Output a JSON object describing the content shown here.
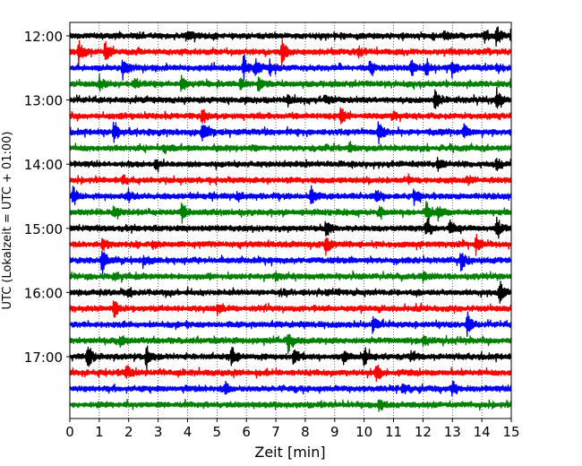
{
  "chart_data": {
    "type": "line",
    "title": "",
    "xlabel": "Zeit  [min]",
    "ylabel": "UTC (Lokalzeit = UTC + 01:00)",
    "xlim": [
      0,
      15
    ],
    "x_ticks": [
      0,
      1,
      2,
      3,
      4,
      5,
      6,
      7,
      8,
      9,
      10,
      11,
      12,
      13,
      14,
      15
    ],
    "y_tick_labels": [
      "12:00",
      "13:00",
      "14:00",
      "15:00",
      "16:00",
      "17:00"
    ],
    "vertical_grid": true,
    "trace_colors": [
      "#000000",
      "#ff0000",
      "#0000ff",
      "#008000"
    ],
    "traces": [
      {
        "start": "12:00",
        "color": "#000000",
        "events": [
          [
            4.0,
            0.4
          ],
          [
            12.7,
            0.4
          ],
          [
            14.1,
            0.45
          ],
          [
            14.5,
            0.8
          ],
          [
            15.0,
            0.7
          ]
        ]
      },
      {
        "start": "12:15",
        "color": "#ff0000",
        "events": [
          [
            0.3,
            0.9
          ],
          [
            1.2,
            0.7
          ],
          [
            7.2,
            1.0
          ],
          [
            9.8,
            0.4
          ]
        ]
      },
      {
        "start": "12:30",
        "color": "#0000ff",
        "events": [
          [
            1.8,
            0.9
          ],
          [
            5.9,
            0.9
          ],
          [
            6.3,
            0.8
          ],
          [
            6.8,
            0.6
          ],
          [
            10.2,
            0.6
          ],
          [
            11.6,
            0.6
          ],
          [
            12.1,
            0.6
          ],
          [
            13.0,
            0.5
          ],
          [
            14.5,
            0.4
          ]
        ]
      },
      {
        "start": "12:45",
        "color": "#008000",
        "events": [
          [
            1.0,
            0.6
          ],
          [
            2.2,
            0.5
          ],
          [
            3.8,
            0.6
          ],
          [
            5.8,
            0.5
          ],
          [
            6.4,
            0.5
          ],
          [
            15.0,
            0.5
          ]
        ]
      },
      {
        "start": "13:00",
        "color": "#000000",
        "events": [
          [
            7.4,
            0.4
          ],
          [
            8.7,
            0.3
          ],
          [
            12.4,
            0.8
          ],
          [
            14.5,
            0.8
          ]
        ]
      },
      {
        "start": "13:15",
        "color": "#ff0000",
        "events": [
          [
            4.5,
            0.8
          ],
          [
            9.2,
            0.8
          ],
          [
            11.0,
            0.3
          ]
        ]
      },
      {
        "start": "13:30",
        "color": "#0000ff",
        "events": [
          [
            1.5,
            0.8
          ],
          [
            4.5,
            1.0
          ],
          [
            10.5,
            1.0
          ],
          [
            13.4,
            0.6
          ]
        ]
      },
      {
        "start": "13:45",
        "color": "#008000",
        "events": [
          [
            3.2,
            0.3
          ],
          [
            9.5,
            0.3
          ]
        ]
      },
      {
        "start": "14:00",
        "color": "#000000",
        "events": [
          [
            2.9,
            0.4
          ],
          [
            12.5,
            0.5
          ],
          [
            14.5,
            0.5
          ]
        ]
      },
      {
        "start": "14:15",
        "color": "#ff0000",
        "events": [
          [
            1.8,
            0.4
          ],
          [
            11.5,
            0.3
          ],
          [
            13.5,
            0.3
          ]
        ]
      },
      {
        "start": "14:30",
        "color": "#0000ff",
        "events": [
          [
            0.1,
            0.9
          ],
          [
            2.0,
            0.5
          ],
          [
            5.7,
            0.4
          ],
          [
            8.2,
            0.8
          ],
          [
            10.4,
            0.5
          ],
          [
            11.7,
            0.5
          ]
        ]
      },
      {
        "start": "14:45",
        "color": "#008000",
        "events": [
          [
            1.5,
            0.5
          ],
          [
            3.8,
            0.8
          ],
          [
            10.5,
            0.4
          ],
          [
            12.1,
            0.9
          ],
          [
            12.5,
            0.6
          ]
        ]
      },
      {
        "start": "15:00",
        "color": "#000000",
        "events": [
          [
            8.7,
            0.8
          ],
          [
            12.1,
            0.9
          ],
          [
            12.9,
            0.6
          ],
          [
            14.5,
            0.7
          ]
        ]
      },
      {
        "start": "15:15",
        "color": "#ff0000",
        "events": [
          [
            1.1,
            0.6
          ],
          [
            2.8,
            0.3
          ],
          [
            8.7,
            0.8
          ],
          [
            13.8,
            0.8
          ]
        ]
      },
      {
        "start": "15:30",
        "color": "#0000ff",
        "events": [
          [
            1.1,
            1.0
          ],
          [
            2.5,
            0.4
          ],
          [
            13.3,
            0.8
          ]
        ]
      },
      {
        "start": "15:45",
        "color": "#008000",
        "events": [
          [
            1.5,
            0.3
          ],
          [
            7.0,
            0.3
          ],
          [
            12.0,
            0.3
          ]
        ]
      },
      {
        "start": "16:00",
        "color": "#000000",
        "events": [
          [
            2.0,
            0.3
          ],
          [
            7.3,
            0.3
          ],
          [
            14.6,
            0.8
          ]
        ]
      },
      {
        "start": "16:15",
        "color": "#ff0000",
        "events": [
          [
            1.5,
            0.8
          ],
          [
            5.0,
            0.3
          ]
        ]
      },
      {
        "start": "16:30",
        "color": "#0000ff",
        "events": [
          [
            10.3,
            0.6
          ],
          [
            13.5,
            0.9
          ]
        ]
      },
      {
        "start": "16:45",
        "color": "#008000",
        "events": [
          [
            1.7,
            0.4
          ],
          [
            7.4,
            0.9
          ],
          [
            12.0,
            0.3
          ]
        ]
      },
      {
        "start": "17:00",
        "color": "#000000",
        "events": [
          [
            0.6,
            1.0
          ],
          [
            2.6,
            1.0
          ],
          [
            5.5,
            0.8
          ],
          [
            7.6,
            0.6
          ],
          [
            9.3,
            0.5
          ],
          [
            10.0,
            0.8
          ],
          [
            11.6,
            0.5
          ]
        ]
      },
      {
        "start": "17:15",
        "color": "#ff0000",
        "events": [
          [
            1.9,
            0.6
          ],
          [
            10.4,
            0.9
          ]
        ]
      },
      {
        "start": "17:30",
        "color": "#0000ff",
        "events": [
          [
            5.3,
            0.4
          ],
          [
            11.3,
            0.6
          ],
          [
            13.0,
            0.5
          ]
        ]
      },
      {
        "start": "17:45",
        "color": "#008000",
        "events": [
          [
            10.5,
            0.4
          ]
        ]
      }
    ]
  }
}
